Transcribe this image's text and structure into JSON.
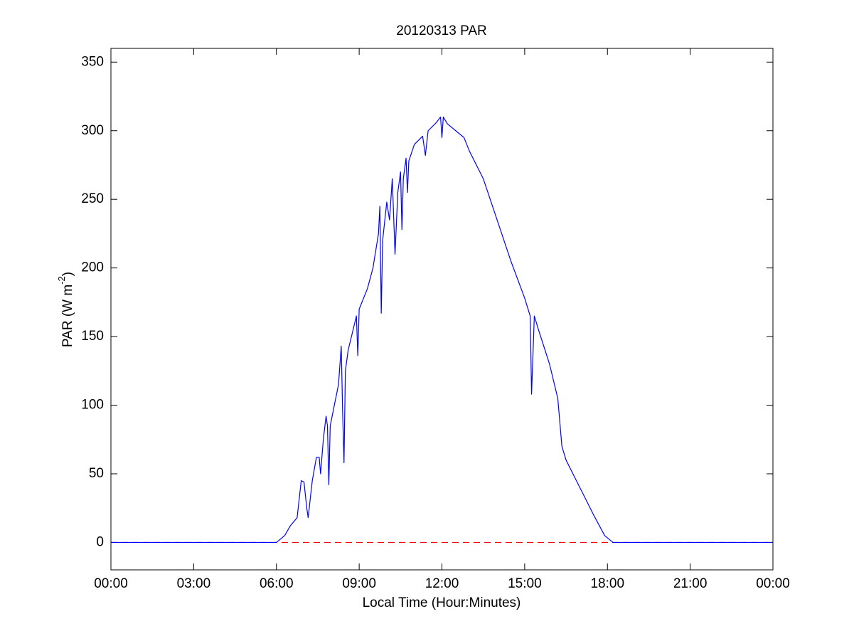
{
  "chart_data": {
    "type": "line",
    "title": "20120313 PAR",
    "xlabel": "Local Time (Hour:Minutes)",
    "ylabel": [
      "PAR (W m",
      "-2",
      ")"
    ],
    "x": [
      0,
      6,
      6.3,
      6.5,
      6.75,
      6.9,
      7.0,
      7.1,
      7.15,
      7.3,
      7.45,
      7.55,
      7.6,
      7.7,
      7.8,
      7.85,
      7.9,
      7.95,
      8.1,
      8.25,
      8.35,
      8.4,
      8.45,
      8.5,
      8.6,
      8.9,
      8.95,
      9.0,
      9.3,
      9.5,
      9.7,
      9.75,
      9.8,
      9.85,
      10.0,
      10.1,
      10.2,
      10.3,
      10.4,
      10.5,
      10.55,
      10.6,
      10.7,
      10.75,
      10.8,
      11.0,
      11.3,
      11.4,
      11.5,
      11.8,
      11.95,
      12.0,
      12.05,
      12.2,
      12.5,
      12.8,
      13.0,
      13.5,
      14.0,
      14.5,
      15.0,
      15.2,
      15.25,
      15.35,
      15.5,
      15.9,
      16.2,
      16.35,
      16.5,
      17.0,
      17.5,
      17.9,
      18.2,
      24
    ],
    "series": [
      {
        "color": "#0000ff",
        "values": [
          0,
          0,
          5,
          12,
          18,
          45,
          44,
          25,
          18,
          45,
          62,
          62,
          50,
          75,
          92,
          85,
          42,
          85,
          100,
          115,
          143,
          95,
          58,
          125,
          140,
          165,
          136,
          170,
          185,
          200,
          225,
          245,
          167,
          220,
          248,
          235,
          265,
          210,
          255,
          270,
          228,
          265,
          280,
          255,
          278,
          290,
          296,
          282,
          300,
          306,
          310,
          295,
          310,
          305,
          300,
          295,
          285,
          265,
          235,
          205,
          178,
          165,
          108,
          165,
          155,
          130,
          105,
          70,
          60,
          40,
          20,
          5,
          0,
          0
        ]
      }
    ],
    "hline": {
      "y": 0,
      "color": "#ff0000",
      "style": "dashed"
    },
    "xlim": [
      0,
      24
    ],
    "xticks": [
      {
        "value": 0,
        "label": "00:00"
      },
      {
        "value": 3,
        "label": "03:00"
      },
      {
        "value": 6,
        "label": "06:00"
      },
      {
        "value": 9,
        "label": "09:00"
      },
      {
        "value": 12,
        "label": "12:00"
      },
      {
        "value": 15,
        "label": "15:00"
      },
      {
        "value": 18,
        "label": "18:00"
      },
      {
        "value": 21,
        "label": "21:00"
      },
      {
        "value": 24,
        "label": "00:00"
      }
    ],
    "ylim": [
      -20,
      360
    ],
    "yticks": [
      0,
      50,
      100,
      150,
      200,
      250,
      300,
      350
    ],
    "grid": false
  }
}
